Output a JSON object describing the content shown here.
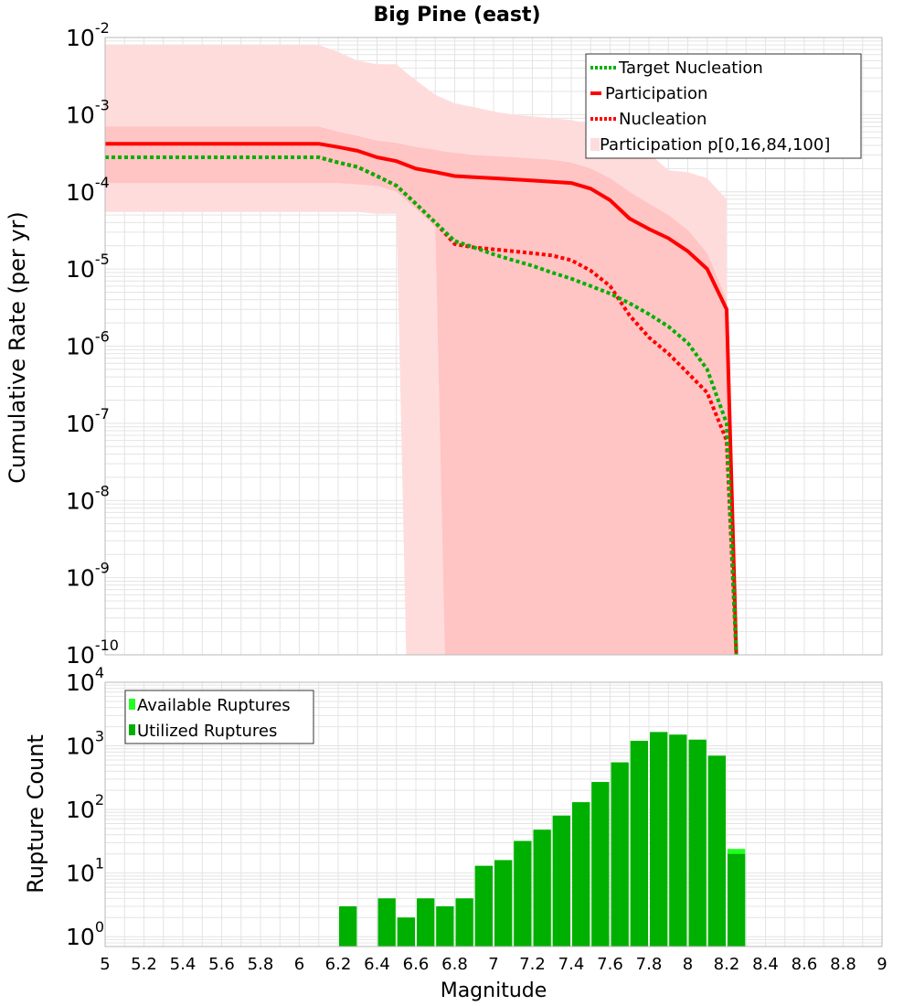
{
  "colors": {
    "participation": "#ff0000",
    "nucleation": "#ff0000",
    "target_nucleation": "#00b000",
    "band_outer": "#ffdcdc",
    "band_inner": "#ffc4c4",
    "available_ruptures": "#22ff22",
    "utilized_ruptures": "#00b000",
    "grid": "#e4e4e4"
  },
  "chart_data": [
    {
      "type": "line",
      "title": "Big Pine (east)",
      "xlabel": "",
      "ylabel": "Cumulative Rate (per yr)",
      "yscale": "log",
      "xlim": [
        5,
        9
      ],
      "ylim": [
        1e-10,
        0.01
      ],
      "grid": true,
      "legend_position": "top-right",
      "ytick_labels": [
        {
          "base": "10",
          "exp": "-10",
          "value": 1e-10
        },
        {
          "base": "10",
          "exp": "-9",
          "value": 1e-09
        },
        {
          "base": "10",
          "exp": "-8",
          "value": 1e-08
        },
        {
          "base": "10",
          "exp": "-7",
          "value": 1e-07
        },
        {
          "base": "10",
          "exp": "-6",
          "value": 1e-06
        },
        {
          "base": "10",
          "exp": "-5",
          "value": 1e-05
        },
        {
          "base": "10",
          "exp": "-4",
          "value": 0.0001
        },
        {
          "base": "10",
          "exp": "-3",
          "value": 0.001
        },
        {
          "base": "10",
          "exp": "-2",
          "value": 0.01
        }
      ],
      "legend": [
        {
          "label": "Target Nucleation",
          "style": "dotted",
          "color": "#00b000"
        },
        {
          "label": "Participation",
          "style": "solid",
          "color": "#ff0000"
        },
        {
          "label": "Nucleation",
          "style": "dotted",
          "color": "#ff0000"
        },
        {
          "label": "Participation p[0,16,84,100]",
          "style": "band",
          "color": "#ffdcdc"
        }
      ],
      "series": [
        {
          "name": "Participation",
          "style": "solid",
          "x": [
            5.0,
            6.1,
            6.2,
            6.3,
            6.4,
            6.5,
            6.6,
            6.7,
            6.8,
            6.9,
            7.0,
            7.1,
            7.2,
            7.3,
            7.4,
            7.5,
            7.6,
            7.7,
            7.8,
            7.9,
            8.0,
            8.1,
            8.2,
            8.25
          ],
          "y": [
            0.00042,
            0.00042,
            0.00038,
            0.00034,
            0.00028,
            0.00025,
            0.0002,
            0.00018,
            0.00016,
            0.000155,
            0.00015,
            0.000145,
            0.00014,
            0.000135,
            0.00013,
            0.00011,
            7.8e-05,
            4.5e-05,
            3.3e-05,
            2.5e-05,
            1.7e-05,
            1e-05,
            3e-06,
            1e-10
          ]
        },
        {
          "name": "Nucleation",
          "style": "dotted",
          "x": [
            5.0,
            6.1,
            6.2,
            6.3,
            6.4,
            6.5,
            6.6,
            6.7,
            6.8,
            6.9,
            7.0,
            7.1,
            7.2,
            7.3,
            7.4,
            7.5,
            7.6,
            7.7,
            7.8,
            7.9,
            8.0,
            8.1,
            8.2,
            8.25
          ],
          "y": [
            0.00028,
            0.00028,
            0.00024,
            0.00021,
            0.00016,
            0.00012,
            7e-05,
            4e-05,
            2.1e-05,
            1.9e-05,
            1.8e-05,
            1.7e-05,
            1.6e-05,
            1.5e-05,
            1.3e-05,
            9.5e-06,
            6e-06,
            2.5e-06,
            1.3e-06,
            8e-07,
            4.5e-07,
            2.5e-07,
            6e-08,
            1e-10
          ]
        },
        {
          "name": "Target Nucleation",
          "style": "dotted",
          "x": [
            5.0,
            6.1,
            6.2,
            6.3,
            6.4,
            6.5,
            6.6,
            6.7,
            6.8,
            6.9,
            7.0,
            7.1,
            7.2,
            7.3,
            7.4,
            7.5,
            7.6,
            7.7,
            7.8,
            7.9,
            8.0,
            8.1,
            8.2,
            8.25
          ],
          "y": [
            0.00028,
            0.00028,
            0.00024,
            0.00021,
            0.00016,
            0.00012,
            7e-05,
            4e-05,
            2.3e-05,
            1.9e-05,
            1.55e-05,
            1.3e-05,
            1.1e-05,
            9e-06,
            7.5e-06,
            6e-06,
            4.8e-06,
            3.6e-06,
            2.6e-06,
            1.8e-06,
            1.1e-06,
            5e-07,
            1e-07,
            1e-10
          ]
        }
      ],
      "bands": [
        {
          "name": "p0-p100",
          "x": [
            5.0,
            6.1,
            6.2,
            6.3,
            6.4,
            6.5,
            6.55,
            6.6,
            6.7,
            6.8,
            6.9,
            7.0,
            7.1,
            7.2,
            7.3,
            7.4,
            7.5,
            7.6,
            7.7,
            7.8,
            7.9,
            8.0,
            8.1,
            8.2
          ],
          "upper": [
            0.008,
            0.008,
            0.0065,
            0.005,
            0.0045,
            0.0045,
            0.0035,
            0.0028,
            0.0018,
            0.0014,
            0.00125,
            0.0011,
            0.001,
            0.00095,
            0.0009,
            0.00085,
            0.00075,
            0.00065,
            0.00045,
            0.00032,
            0.00019,
            0.00018,
            0.00015,
            8e-05
          ],
          "lower": [
            5.5e-05,
            5.5e-05,
            5.5e-05,
            5.5e-05,
            5.2e-05,
            5.2e-05,
            1e-10,
            1e-10,
            1e-10,
            1e-10,
            1e-10,
            1e-10,
            1e-10,
            1e-10,
            1e-10,
            1e-10,
            1e-10,
            1e-10,
            1e-10,
            1e-10,
            1e-10,
            1e-10,
            1e-10,
            1e-10
          ]
        },
        {
          "name": "p16-p84",
          "x": [
            5.0,
            6.1,
            6.2,
            6.3,
            6.4,
            6.5,
            6.6,
            6.7,
            6.75,
            6.8,
            6.9,
            7.0,
            7.1,
            7.2,
            7.3,
            7.4,
            7.5,
            7.6,
            7.7,
            7.8,
            7.9,
            8.0,
            8.1,
            8.2,
            8.25
          ],
          "upper": [
            0.0007,
            0.0007,
            0.0006,
            0.00053,
            0.00046,
            0.00043,
            0.00038,
            0.00035,
            0.00033,
            0.00032,
            0.0003,
            0.00029,
            0.00028,
            0.00027,
            0.00026,
            0.00024,
            0.0002,
            0.00015,
            0.0001,
            7e-05,
            5e-05,
            3.2e-05,
            1.6e-05,
            4e-06,
            1e-10
          ],
          "lower": [
            0.00013,
            0.00013,
            0.00013,
            0.000125,
            0.00012,
            0.0001,
            6e-05,
            3.5e-05,
            1e-10,
            1e-10,
            1e-10,
            1e-10,
            1e-10,
            1e-10,
            1e-10,
            1e-10,
            1e-10,
            1e-10,
            1e-10,
            1e-10,
            1e-10,
            1e-10,
            1e-10,
            1e-10,
            1e-10
          ]
        }
      ]
    },
    {
      "type": "bar",
      "title": "",
      "xlabel": "Magnitude",
      "ylabel": "Rupture Count",
      "yscale": "log",
      "xlim": [
        5,
        9
      ],
      "ylim": [
        0.7,
        10000
      ],
      "grid": true,
      "legend_position": "top-left",
      "xtick_labels": [
        "5",
        "5.2",
        "5.4",
        "5.6",
        "5.8",
        "6",
        "6.2",
        "6.4",
        "6.6",
        "6.8",
        "7",
        "7.2",
        "7.4",
        "7.6",
        "7.8",
        "8",
        "8.2",
        "8.4",
        "8.6",
        "8.8",
        "9"
      ],
      "ytick_labels": [
        {
          "base": "10",
          "exp": "0",
          "value": 1
        },
        {
          "base": "10",
          "exp": "1",
          "value": 10
        },
        {
          "base": "10",
          "exp": "2",
          "value": 100
        },
        {
          "base": "10",
          "exp": "3",
          "value": 1000
        },
        {
          "base": "10",
          "exp": "4",
          "value": 10000
        }
      ],
      "bin_width": 0.1,
      "bin_centers": [
        6.25,
        6.35,
        6.45,
        6.55,
        6.65,
        6.75,
        6.85,
        6.95,
        7.05,
        7.15,
        7.25,
        7.35,
        7.45,
        7.55,
        7.65,
        7.75,
        7.85,
        7.95,
        8.05,
        8.15,
        8.25
      ],
      "series": [
        {
          "name": "Available Ruptures",
          "values": [
            3,
            0,
            4,
            2,
            4,
            3,
            4,
            13,
            16,
            32,
            48,
            80,
            130,
            270,
            550,
            1200,
            1650,
            1500,
            1250,
            700,
            24
          ]
        },
        {
          "name": "Utilized Ruptures",
          "values": [
            3,
            0,
            4,
            2,
            4,
            3,
            4,
            13,
            16,
            32,
            48,
            80,
            130,
            270,
            550,
            1200,
            1650,
            1500,
            1250,
            700,
            20
          ]
        }
      ],
      "legend": [
        {
          "label": "Available Ruptures",
          "color": "#22ff22"
        },
        {
          "label": "Utilized Ruptures",
          "color": "#00b000"
        }
      ]
    }
  ]
}
